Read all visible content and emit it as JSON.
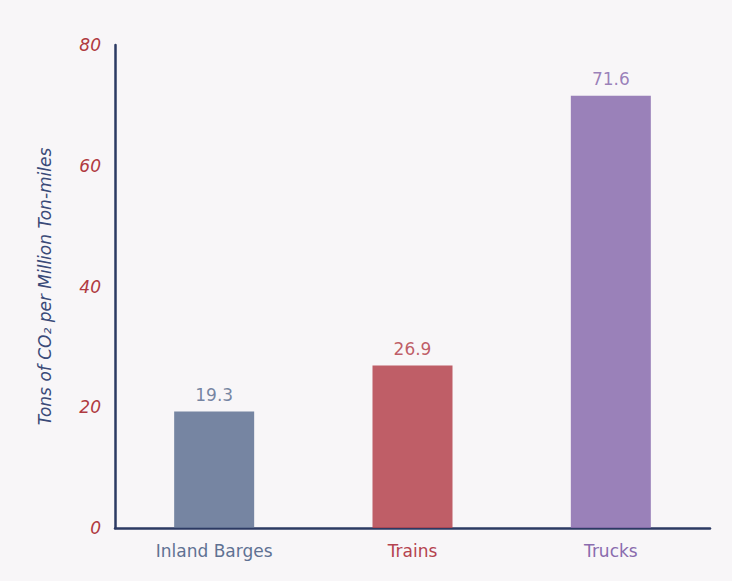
{
  "chart_data": {
    "type": "bar",
    "y_label": "Tons of CO₂ per Million Ton-miles",
    "categories": [
      "Inland Barges",
      "Trains",
      "Trucks"
    ],
    "values": [
      19.3,
      26.9,
      71.6
    ],
    "colors": [
      "#5f7193",
      "#b5434e",
      "#8a6cae"
    ],
    "ylim": [
      0,
      80
    ],
    "yticks": [
      0,
      20,
      40,
      60,
      80
    ],
    "grid": false,
    "data_labels": true
  }
}
